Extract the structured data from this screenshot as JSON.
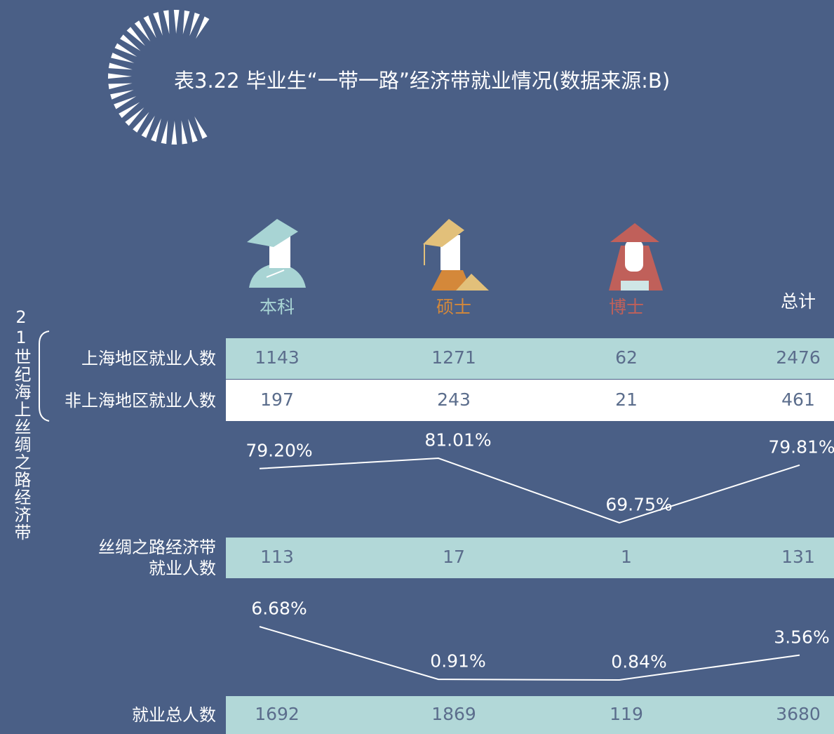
{
  "title": "表3.22 毕业生“一带一路”经济带就业情况(数据来源:B)",
  "side_label": "21世纪海上丝绸之路经济带",
  "columns": [
    "本科",
    "硕士",
    "博士",
    "总计"
  ],
  "rows": [
    {
      "label": "上海地区就业人数",
      "values": [
        1143,
        1271,
        62,
        2476
      ]
    },
    {
      "label": "非上海地区就业人数",
      "values": [
        197,
        243,
        21,
        461
      ]
    },
    {
      "label": "丝绸之路经济带就业人数",
      "values": [
        113,
        17,
        1,
        131
      ]
    },
    {
      "label": "就业总人数",
      "values": [
        1692,
        1869,
        119,
        3680
      ]
    }
  ],
  "lines": [
    {
      "values": [
        79.2,
        81.01,
        69.75,
        79.81
      ],
      "value_labels": [
        "79.20%",
        "81.01%",
        "69.75%",
        "79.81%"
      ]
    },
    {
      "values": [
        6.68,
        0.91,
        0.84,
        3.56
      ],
      "value_labels": [
        "6.68%",
        "0.91%",
        "0.84%",
        "3.56%"
      ]
    }
  ]
}
